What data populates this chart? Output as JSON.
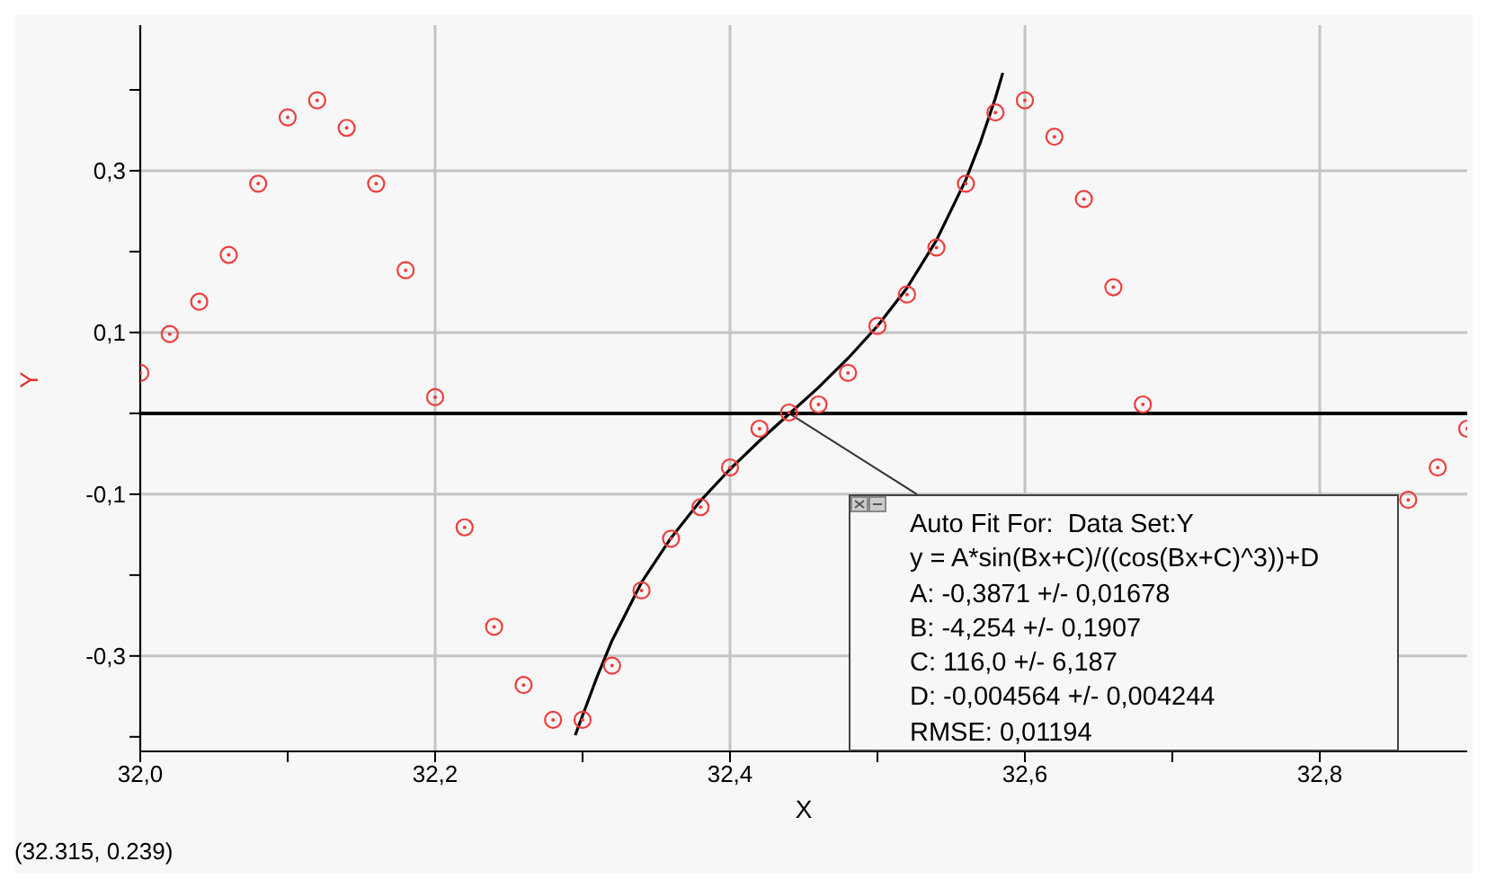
{
  "chart_data": {
    "type": "scatter",
    "xlabel": "X",
    "ylabel": "Y",
    "xlim": [
      32.0,
      32.9
    ],
    "ylim": [
      -0.418,
      0.48
    ],
    "xticks": [
      {
        "value": 32.0,
        "label": "32,0"
      },
      {
        "value": 32.1,
        "label": null
      },
      {
        "value": 32.2,
        "label": "32,2"
      },
      {
        "value": 32.3,
        "label": null
      },
      {
        "value": 32.4,
        "label": "32,4"
      },
      {
        "value": 32.5,
        "label": null
      },
      {
        "value": 32.6,
        "label": "32,6"
      },
      {
        "value": 32.7,
        "label": null
      },
      {
        "value": 32.8,
        "label": "32,8"
      }
    ],
    "yticks": [
      {
        "value": -0.4,
        "label": null
      },
      {
        "value": -0.3,
        "label": "-0,3"
      },
      {
        "value": -0.2,
        "label": null
      },
      {
        "value": -0.1,
        "label": "-0,1"
      },
      {
        "value": 0,
        "label": null
      },
      {
        "value": 0.1,
        "label": "0,1"
      },
      {
        "value": 0.2,
        "label": null
      },
      {
        "value": 0.3,
        "label": "0,3"
      },
      {
        "value": 0.4,
        "label": null
      }
    ],
    "grid": true,
    "legend": false,
    "marker": "circle",
    "ref_lines": [
      {
        "axis": "y",
        "value": 0,
        "color": "#000000",
        "line_style": "solid"
      }
    ],
    "series": [
      {
        "color": "#f03c3c",
        "x": [
          32.0,
          32.02,
          32.04,
          32.06,
          32.08,
          32.1,
          32.12,
          32.14,
          32.16,
          32.18,
          32.2,
          32.22,
          32.24,
          32.26,
          32.28,
          32.3,
          32.32,
          32.34,
          32.36,
          32.38,
          32.4,
          32.42,
          32.44,
          32.46,
          32.48,
          32.5,
          32.52,
          32.54,
          32.56,
          32.58,
          32.6,
          32.62,
          32.64,
          32.66,
          32.68,
          32.86,
          32.88,
          32.9
        ],
        "values": [
          0.05,
          0.098,
          0.138,
          0.196,
          0.284,
          0.366,
          0.387,
          0.353,
          0.284,
          0.177,
          0.02,
          -0.141,
          -0.264,
          -0.336,
          -0.379,
          -0.379,
          -0.312,
          -0.219,
          -0.155,
          -0.116,
          -0.067,
          -0.019,
          0.001,
          0.011,
          0.05,
          0.108,
          0.147,
          0.205,
          0.284,
          0.372,
          0.387,
          0.342,
          0.265,
          0.156,
          0.011,
          -0.107,
          -0.067,
          -0.019
        ]
      },
      {
        "type": "line",
        "color": "#000000",
        "marker": "none",
        "line_style": "solid",
        "x": [
          32.295,
          32.31,
          32.32,
          32.34,
          32.36,
          32.38,
          32.4,
          32.42,
          32.44,
          32.46,
          32.48,
          32.5,
          32.52,
          32.54,
          32.56,
          32.57,
          32.58,
          32.585
        ],
        "values": [
          -0.398,
          -0.325,
          -0.281,
          -0.209,
          -0.154,
          -0.108,
          -0.069,
          -0.034,
          -0.001,
          0.032,
          0.068,
          0.108,
          0.155,
          0.214,
          0.289,
          0.336,
          0.39,
          0.421
        ]
      }
    ],
    "annotations": [
      {
        "text": "Auto Fit For:  Data Set:Y",
        "x": 32.44,
        "y": 0
      },
      "y = A*sin(Bx+C)/((cos(Bx+C)^3))+D",
      "A: -0,3871 +/- 0,01678",
      "B: -4,254 +/- 0,1907",
      "C: 116,0 +/- 6,187",
      "D: -0,004564 +/- 0,004244",
      "RMSE: 0,01194",
      "(32.315, 0.239)"
    ]
  }
}
